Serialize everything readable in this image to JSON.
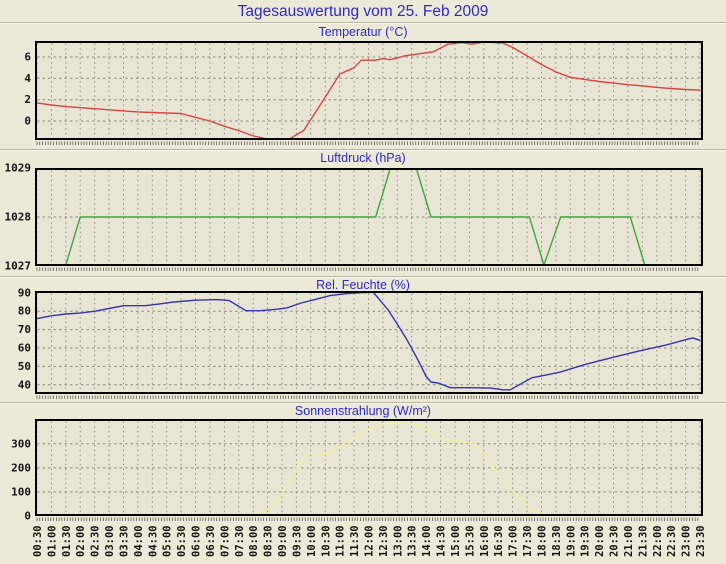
{
  "page": {
    "title": "Tagesauswertung vom 25. Feb 2009",
    "colors": {
      "background": "#ECE9D8",
      "plot_background": "#E8E5D4",
      "title_blue": "#2A2AC8",
      "plot_border": "#000000",
      "grid": "#8C8C7C",
      "tick_text": "#151515"
    }
  },
  "x_axis": {
    "step_minutes": 30,
    "labels": [
      "00:30",
      "01:00",
      "01:30",
      "02:00",
      "02:30",
      "03:00",
      "03:30",
      "04:00",
      "04:30",
      "05:00",
      "05:30",
      "06:00",
      "06:30",
      "07:00",
      "07:30",
      "08:00",
      "08:30",
      "09:00",
      "09:30",
      "10:00",
      "10:30",
      "11:00",
      "11:30",
      "12:00",
      "12:30",
      "13:00",
      "13:30",
      "14:00",
      "14:30",
      "15:00",
      "15:30",
      "16:00",
      "16:30",
      "17:00",
      "17:30",
      "18:00",
      "18:30",
      "19:00",
      "19:30",
      "20:00",
      "20:30",
      "21:00",
      "21:30",
      "22:00",
      "22:30",
      "23:00",
      "23:30"
    ]
  },
  "chart_data": [
    {
      "type": "line",
      "title": "Temperatur (°C)",
      "unit": "°C",
      "color": "#D9443C",
      "ylim": [
        -1.78,
        7.5
      ],
      "yticks": [
        0,
        2,
        4,
        6
      ],
      "grid": true,
      "points": [
        [
          "00:30",
          1.7
        ],
        [
          "01:00",
          1.5
        ],
        [
          "01:30",
          1.35
        ],
        [
          "02:00",
          1.25
        ],
        [
          "02:30",
          1.15
        ],
        [
          "03:00",
          1.05
        ],
        [
          "03:30",
          0.95
        ],
        [
          "04:00",
          0.85
        ],
        [
          "04:30",
          0.8
        ],
        [
          "05:00",
          0.75
        ],
        [
          "05:30",
          0.7
        ],
        [
          "06:00",
          0.35
        ],
        [
          "06:30",
          0.0
        ],
        [
          "07:00",
          -0.5
        ],
        [
          "07:30",
          -0.9
        ],
        [
          "08:00",
          -1.4
        ],
        [
          "08:30",
          -1.7
        ],
        [
          "09:15",
          -1.75
        ],
        [
          "09:45",
          -0.9
        ],
        [
          "10:15",
          1.2
        ],
        [
          "10:45",
          3.3
        ],
        [
          "11:00",
          4.4
        ],
        [
          "11:30",
          5.0
        ],
        [
          "11:45",
          5.7
        ],
        [
          "12:15",
          5.7
        ],
        [
          "12:30",
          5.85
        ],
        [
          "12:45",
          5.75
        ],
        [
          "13:15",
          6.1
        ],
        [
          "13:45",
          6.3
        ],
        [
          "14:15",
          6.5
        ],
        [
          "14:45",
          7.2
        ],
        [
          "15:15",
          7.35
        ],
        [
          "15:35",
          7.2
        ],
        [
          "16:00",
          7.4
        ],
        [
          "16:40",
          7.3
        ],
        [
          "17:00",
          6.9
        ],
        [
          "17:30",
          6.1
        ],
        [
          "18:00",
          5.3
        ],
        [
          "18:30",
          4.6
        ],
        [
          "19:00",
          4.1
        ],
        [
          "19:30",
          3.9
        ],
        [
          "20:00",
          3.7
        ],
        [
          "20:30",
          3.55
        ],
        [
          "21:00",
          3.4
        ],
        [
          "21:30",
          3.3
        ],
        [
          "22:00",
          3.15
        ],
        [
          "22:30",
          3.05
        ],
        [
          "23:00",
          2.95
        ],
        [
          "23:30",
          2.9
        ]
      ]
    },
    {
      "type": "line",
      "title": "Luftdruck (hPa)",
      "unit": "hPa",
      "color": "#3CA83C",
      "ylim": [
        1027,
        1029
      ],
      "yticks": [
        1027,
        1028,
        1029
      ],
      "grid": true,
      "points": [
        [
          "00:30",
          1027
        ],
        [
          "01:30",
          1027
        ],
        [
          "02:00",
          1028
        ],
        [
          "12:15",
          1028
        ],
        [
          "12:45",
          1029
        ],
        [
          "13:40",
          1029
        ],
        [
          "14:10",
          1028
        ],
        [
          "17:35",
          1028
        ],
        [
          "18:05",
          1027
        ],
        [
          "18:40",
          1028
        ],
        [
          "21:05",
          1028
        ],
        [
          "21:35",
          1027
        ],
        [
          "23:30",
          1027
        ]
      ]
    },
    {
      "type": "line",
      "title": "Rel. Feuchte (%)",
      "unit": "%",
      "color": "#3434B4",
      "ylim": [
        35,
        91
      ],
      "yticks": [
        40,
        50,
        60,
        70,
        80,
        90
      ],
      "grid": true,
      "points": [
        [
          "00:30",
          76
        ],
        [
          "01:00",
          77.5
        ],
        [
          "01:30",
          78.5
        ],
        [
          "02:00",
          79
        ],
        [
          "02:30",
          80
        ],
        [
          "03:00",
          81.5
        ],
        [
          "03:30",
          83
        ],
        [
          "04:15",
          83
        ],
        [
          "04:45",
          84
        ],
        [
          "05:15",
          85
        ],
        [
          "06:00",
          86
        ],
        [
          "06:45",
          86.3
        ],
        [
          "07:10",
          85.8
        ],
        [
          "07:45",
          80.3
        ],
        [
          "08:15",
          80.3
        ],
        [
          "08:45",
          81
        ],
        [
          "09:10",
          81.8
        ],
        [
          "09:40",
          84.5
        ],
        [
          "10:10",
          86.5
        ],
        [
          "10:40",
          88.5
        ],
        [
          "11:10",
          89.5
        ],
        [
          "11:40",
          90
        ],
        [
          "12:10",
          90.3
        ],
        [
          "12:40",
          81
        ],
        [
          "13:00",
          73
        ],
        [
          "13:20",
          64.5
        ],
        [
          "13:40",
          55
        ],
        [
          "14:00",
          44.5
        ],
        [
          "14:10",
          41.5
        ],
        [
          "14:25",
          41
        ],
        [
          "14:50",
          38.4
        ],
        [
          "15:30",
          38.4
        ],
        [
          "16:15",
          38.2
        ],
        [
          "16:40",
          37.3
        ],
        [
          "16:55",
          37.3
        ],
        [
          "17:40",
          43.8
        ],
        [
          "18:10",
          45.4
        ],
        [
          "18:40",
          47
        ],
        [
          "19:30",
          51
        ],
        [
          "20:25",
          54.7
        ],
        [
          "21:25",
          58.5
        ],
        [
          "22:20",
          61.7
        ],
        [
          "23:00",
          64.5
        ],
        [
          "23:15",
          65.5
        ],
        [
          "23:30",
          64.2
        ]
      ]
    },
    {
      "type": "line",
      "title": "Sonnenstrahlung (W/m²)",
      "unit": "W/m²",
      "color": "#F2EFA0",
      "ylim": [
        0,
        403
      ],
      "yticks": [
        0,
        100,
        200,
        300
      ],
      "grid": true,
      "points": [
        [
          "00:30",
          0
        ],
        [
          "07:40",
          0
        ],
        [
          "08:10",
          8
        ],
        [
          "08:40",
          40
        ],
        [
          "09:03",
          100
        ],
        [
          "09:25",
          180
        ],
        [
          "09:50",
          260
        ],
        [
          "10:15",
          258
        ],
        [
          "10:35",
          256
        ],
        [
          "10:55",
          283
        ],
        [
          "11:20",
          315
        ],
        [
          "11:50",
          355
        ],
        [
          "12:30",
          383
        ],
        [
          "13:00",
          388
        ],
        [
          "13:45",
          380
        ],
        [
          "14:10",
          345
        ],
        [
          "14:35",
          318
        ],
        [
          "15:05",
          312
        ],
        [
          "15:35",
          303
        ],
        [
          "16:00",
          255
        ],
        [
          "16:25",
          190
        ],
        [
          "16:50",
          120
        ],
        [
          "17:20",
          60
        ],
        [
          "17:50",
          15
        ],
        [
          "18:20",
          0
        ],
        [
          "23:30",
          0
        ]
      ]
    }
  ]
}
